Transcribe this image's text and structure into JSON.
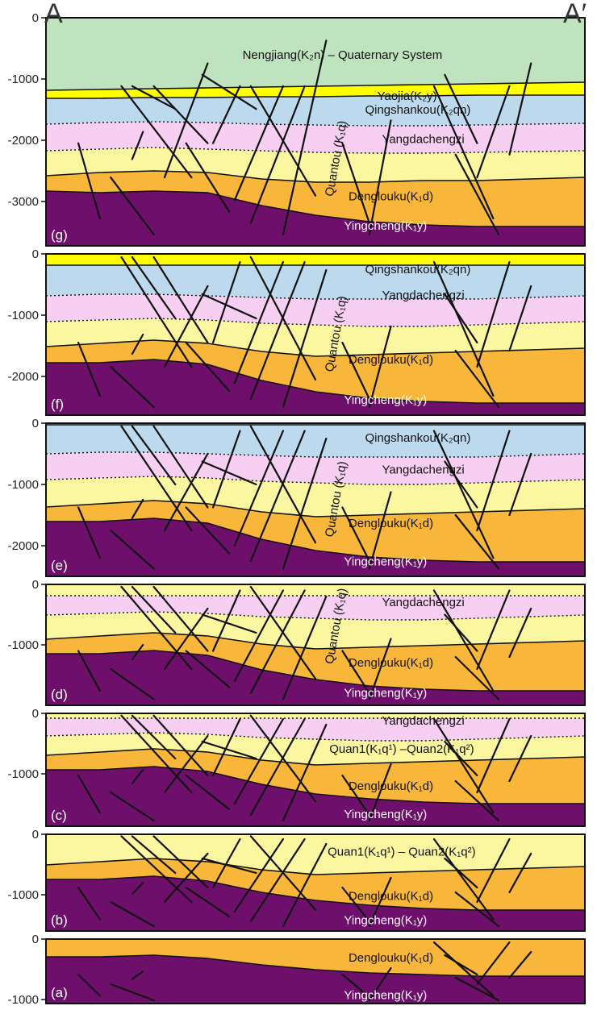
{
  "section": {
    "start_label": "A",
    "end_label": "A′"
  },
  "colors": {
    "nengjiang": "#bfe3bf",
    "yaojia": "#ffff00",
    "qingshankou": "#bcd9ee",
    "yangdachengzi": "#f6cff2",
    "quantou": "#fbf6a0",
    "denglouku": "#f8b73a",
    "yingcheng": "#6e0f6b"
  },
  "panels": [
    {
      "id": "g",
      "label": "(g)",
      "ticks": [
        "0",
        "-1000",
        "-2000",
        "-3000"
      ],
      "layers": {
        "nengjiang": "Nengjiang(K₂n) – Quaternary System",
        "yaojia": "Yaojia(K₂y)",
        "qingshankou": "Qingshankou(K₂qn)",
        "yangdachengzi": "Yangdachengzi",
        "quantou": "Quantou (K₁q)",
        "denglouku": "Denglouku(K₁d)",
        "yingcheng": "Yingcheng(K₁y)"
      }
    },
    {
      "id": "f",
      "label": "(f)",
      "ticks": [
        "0",
        "-1000",
        "-2000"
      ],
      "layers": {
        "qingshankou": "Qingshankou(K₂qn)",
        "yangdachengzi": "Yangdachengzi",
        "quantou": "Quantou (K₁q)",
        "denglouku": "Denglouku(K₁d)",
        "yingcheng": "Yingcheng(K₁y)"
      }
    },
    {
      "id": "e",
      "label": "(e)",
      "ticks": [
        "0",
        "-1000",
        "-2000"
      ],
      "layers": {
        "qingshankou": "Qingshankou(K₂qn)",
        "yangdachengzi": "Yangdachengzi",
        "quantou": "Quantou (K₁q)",
        "denglouku": "Denglouku(K₁d)",
        "yingcheng": "Yingcheng(K₁y)"
      }
    },
    {
      "id": "d",
      "label": "(d)",
      "ticks": [
        "0",
        "-1000"
      ],
      "layers": {
        "yangdachengzi": "Yangdachengzi",
        "quantou": "Quantou (K₁q)",
        "denglouku": "Denglouku(K₁d)",
        "yingcheng": "Yingcheng(K₁y)"
      }
    },
    {
      "id": "c",
      "label": "(c)",
      "ticks": [
        "0",
        "-1000"
      ],
      "layers": {
        "yangdachengzi": "Yangdachengzi",
        "quantou": "Quan1(K₁q¹) –Quan2(K₁q²)",
        "denglouku": "Denglouku(K₁d)",
        "yingcheng": "Yingcheng(K₁y)"
      }
    },
    {
      "id": "b",
      "label": "(b)",
      "ticks": [
        "0",
        "-1000"
      ],
      "layers": {
        "quantou": "Quan1(K₁q¹)  – Quan2(K₁q²)",
        "denglouku": "Denglouku(K₁d)",
        "yingcheng": "Yingcheng(K₁y)"
      }
    },
    {
      "id": "a",
      "label": "(a)",
      "ticks": [
        "0",
        "-1000"
      ],
      "layers": {
        "denglouku": "Denglouku(K₁d)",
        "yingcheng": "Yingcheng(K₁y)"
      }
    }
  ]
}
